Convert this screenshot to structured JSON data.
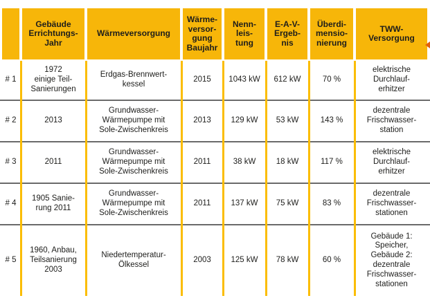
{
  "table": {
    "headers": {
      "corner": "",
      "building_year": "Gebäude\nErrichtungs-\nJahr",
      "heat_supply": "Wärmeversorgung",
      "heat_supply_year": "Wärme-\nversor-\ngung\nBaujahr",
      "nominal_power": "Nenn-\nleis-\ntung",
      "eav_result": "E-A-V-\nErgeb-\nnis",
      "oversizing": "Überdi-\nmensio-\nnierung",
      "dhw_supply": "TWW-\nVersorgung"
    },
    "rows": [
      {
        "id": "# 1",
        "building_year": "1972\neinige Teil-\nSanierungen",
        "heat_supply": "Erdgas-Brennwert-\nkessel",
        "heat_supply_year": "2015",
        "nominal_power": "1043 kW",
        "eav_result": "612 kW",
        "oversizing": "70 %",
        "dhw_supply": "elektrische\nDurchlauf-\nerhitzer"
      },
      {
        "id": "# 2",
        "building_year": "2013",
        "heat_supply": "Grundwasser-\nWärmepumpe mit\nSole-Zwischenkreis",
        "heat_supply_year": "2013",
        "nominal_power": "129 kW",
        "eav_result": "53 kW",
        "oversizing": "143 %",
        "dhw_supply": "dezentrale\nFrischwasser-\nstation"
      },
      {
        "id": "# 3",
        "building_year": "2011",
        "heat_supply": "Grundwasser-\nWärmepumpe mit\nSole-Zwischenkreis",
        "heat_supply_year": "2011",
        "nominal_power": "38 kW",
        "eav_result": "18 kW",
        "oversizing": "117 %",
        "dhw_supply": "elektrische\nDurchlauf-\nerhitzer"
      },
      {
        "id": "# 4",
        "building_year": "1905 Sanie-\nrung 2011",
        "heat_supply": "Grundwasser-\nWärmepumpe mit\nSole-Zwischenkreis",
        "heat_supply_year": "2011",
        "nominal_power": "137 kW",
        "eav_result": "75 kW",
        "oversizing": "83 %",
        "dhw_supply": "dezentrale\nFrischwasser-\nstationen"
      },
      {
        "id": "# 5",
        "building_year": "1960, Anbau,\nTeilsanierung\n2003",
        "heat_supply": "Niedertemperatur-\nÖlkessel",
        "heat_supply_year": "2003",
        "nominal_power": "125 kW",
        "eav_result": "78 kW",
        "oversizing": "60 %",
        "dhw_supply": "Gebäude 1:\nSpeicher,\nGebäude 2:\ndezentrale\nFrischwasser-\nstationen"
      }
    ]
  },
  "colors": {
    "header_bg": "#f7b609",
    "grid_line": "#fbbd00",
    "row_divider": "#6a6a6a",
    "text": "#1d1d1b",
    "edge_marker": "#e2600f"
  }
}
